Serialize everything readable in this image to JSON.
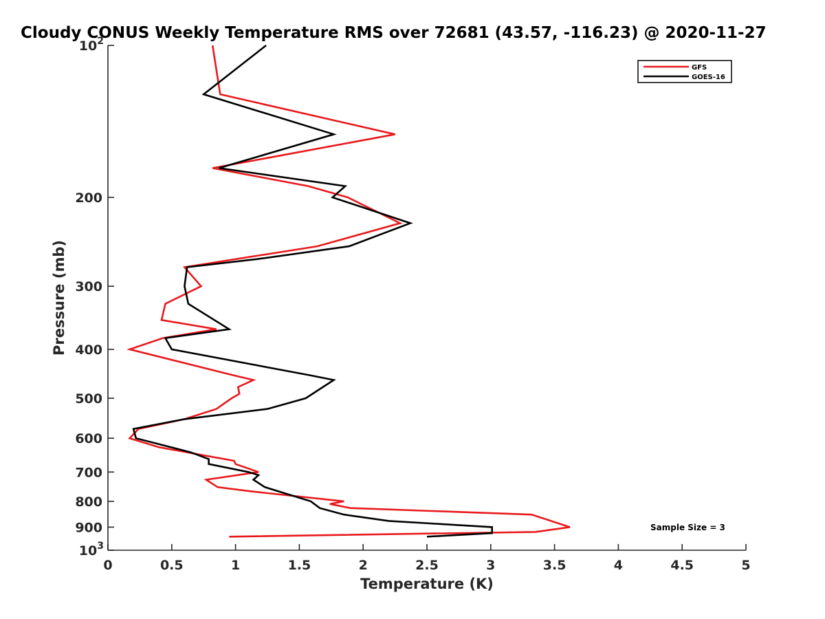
{
  "chart_data": {
    "type": "line",
    "title": "Cloudy CONUS Weekly Temperature RMS over 72681 (43.57, -116.23) @ 2020-11-27",
    "xlabel": "Temperature (K)",
    "ylabel": "Pressure (mb)",
    "xlim": [
      0,
      5
    ],
    "ylim": [
      100,
      1000
    ],
    "y_scale": "log",
    "y_reversed": true,
    "grid": false,
    "legend_position": "top-right",
    "x_ticks": [
      "0",
      "0.5",
      "1",
      "1.5",
      "2",
      "2.5",
      "3",
      "3.5",
      "4",
      "4.5",
      "5"
    ],
    "y_ticks": [
      {
        "value": 100,
        "label": "10",
        "sup": "2"
      },
      {
        "value": 200,
        "label": "200"
      },
      {
        "value": 300,
        "label": "300"
      },
      {
        "value": 400,
        "label": "400"
      },
      {
        "value": 500,
        "label": "500"
      },
      {
        "value": 600,
        "label": "600"
      },
      {
        "value": 700,
        "label": "700"
      },
      {
        "value": 800,
        "label": "800"
      },
      {
        "value": 900,
        "label": "900"
      },
      {
        "value": 1000,
        "label": "10",
        "sup": "3"
      }
    ],
    "series": [
      {
        "name": "GFS",
        "color": "#e8191c",
        "points": [
          [
            0.82,
            100
          ],
          [
            0.88,
            125
          ],
          [
            2.25,
            150
          ],
          [
            0.82,
            175
          ],
          [
            1.57,
            190
          ],
          [
            1.88,
            200
          ],
          [
            2.29,
            225
          ],
          [
            1.64,
            250
          ],
          [
            0.6,
            275
          ],
          [
            0.73,
            300
          ],
          [
            0.45,
            325
          ],
          [
            0.42,
            350
          ],
          [
            0.85,
            365
          ],
          [
            0.43,
            380
          ],
          [
            0.17,
            400
          ],
          [
            0.98,
            450
          ],
          [
            1.14,
            460
          ],
          [
            1.02,
            475
          ],
          [
            1.03,
            490
          ],
          [
            0.97,
            500
          ],
          [
            0.85,
            525
          ],
          [
            0.6,
            550
          ],
          [
            0.24,
            575
          ],
          [
            0.17,
            600
          ],
          [
            0.4,
            625
          ],
          [
            0.77,
            650
          ],
          [
            0.99,
            665
          ],
          [
            1.0,
            675
          ],
          [
            1.18,
            700
          ],
          [
            0.77,
            725
          ],
          [
            0.86,
            750
          ],
          [
            1.13,
            765
          ],
          [
            1.85,
            800
          ],
          [
            1.74,
            810
          ],
          [
            1.9,
            825
          ],
          [
            3.32,
            850
          ],
          [
            3.62,
            900
          ],
          [
            3.35,
            920
          ],
          [
            0.95,
            940
          ]
        ]
      },
      {
        "name": "GOES-16",
        "color": "#000000",
        "points": [
          [
            1.24,
            100
          ],
          [
            0.75,
            125
          ],
          [
            1.77,
            150
          ],
          [
            0.87,
            175
          ],
          [
            1.86,
            190
          ],
          [
            1.76,
            200
          ],
          [
            2.37,
            225
          ],
          [
            1.89,
            250
          ],
          [
            1.17,
            265
          ],
          [
            0.62,
            275
          ],
          [
            0.6,
            300
          ],
          [
            0.63,
            325
          ],
          [
            0.95,
            365
          ],
          [
            0.45,
            380
          ],
          [
            0.5,
            400
          ],
          [
            1.58,
            450
          ],
          [
            1.77,
            460
          ],
          [
            1.55,
            500
          ],
          [
            1.25,
            525
          ],
          [
            0.6,
            550
          ],
          [
            0.2,
            575
          ],
          [
            0.22,
            600
          ],
          [
            0.65,
            640
          ],
          [
            0.79,
            660
          ],
          [
            0.79,
            675
          ],
          [
            1.1,
            700
          ],
          [
            1.18,
            710
          ],
          [
            1.14,
            725
          ],
          [
            1.23,
            750
          ],
          [
            1.59,
            800
          ],
          [
            1.66,
            825
          ],
          [
            1.85,
            850
          ],
          [
            2.2,
            875
          ],
          [
            3.01,
            900
          ],
          [
            3.01,
            925
          ],
          [
            2.5,
            940
          ]
        ]
      }
    ],
    "annotation": "Sample Size = 3"
  }
}
